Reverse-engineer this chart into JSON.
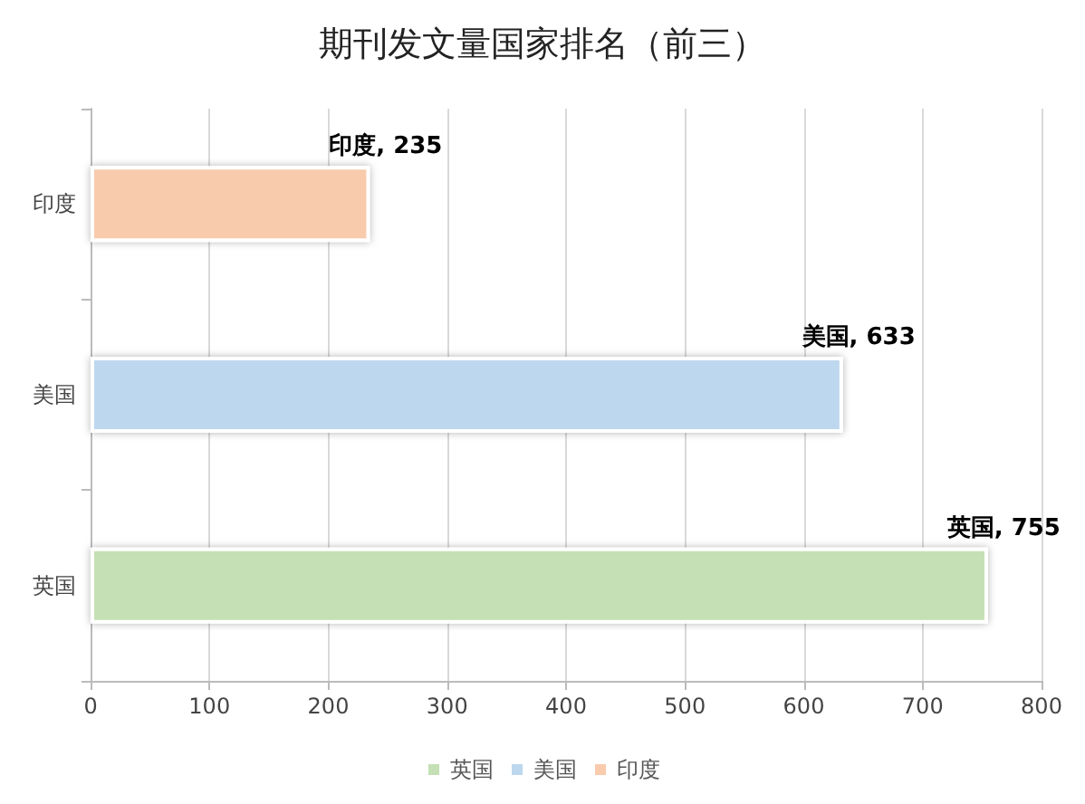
{
  "chart_data": {
    "type": "bar",
    "orientation": "horizontal",
    "title": "期刊发文量国家排名（前三）",
    "categories": [
      "印度",
      "美国",
      "英国"
    ],
    "series": [
      {
        "name": "英国",
        "color": "#c5e0b4",
        "values": [
          null,
          null,
          755
        ],
        "value_labels": [
          null,
          null,
          "英国, 755"
        ]
      },
      {
        "name": "美国",
        "color": "#bdd7ee",
        "values": [
          null,
          633,
          null
        ],
        "value_labels": [
          null,
          "美国, 633",
          null
        ]
      },
      {
        "name": "印度",
        "color": "#f8cbad",
        "values": [
          235,
          null,
          null
        ],
        "value_labels": [
          "印度, 235",
          null,
          null
        ]
      }
    ],
    "xlim": [
      0,
      800
    ],
    "xticks": [
      0,
      100,
      200,
      300,
      400,
      500,
      600,
      700,
      800
    ],
    "grid": "x",
    "legend": "bottom"
  }
}
